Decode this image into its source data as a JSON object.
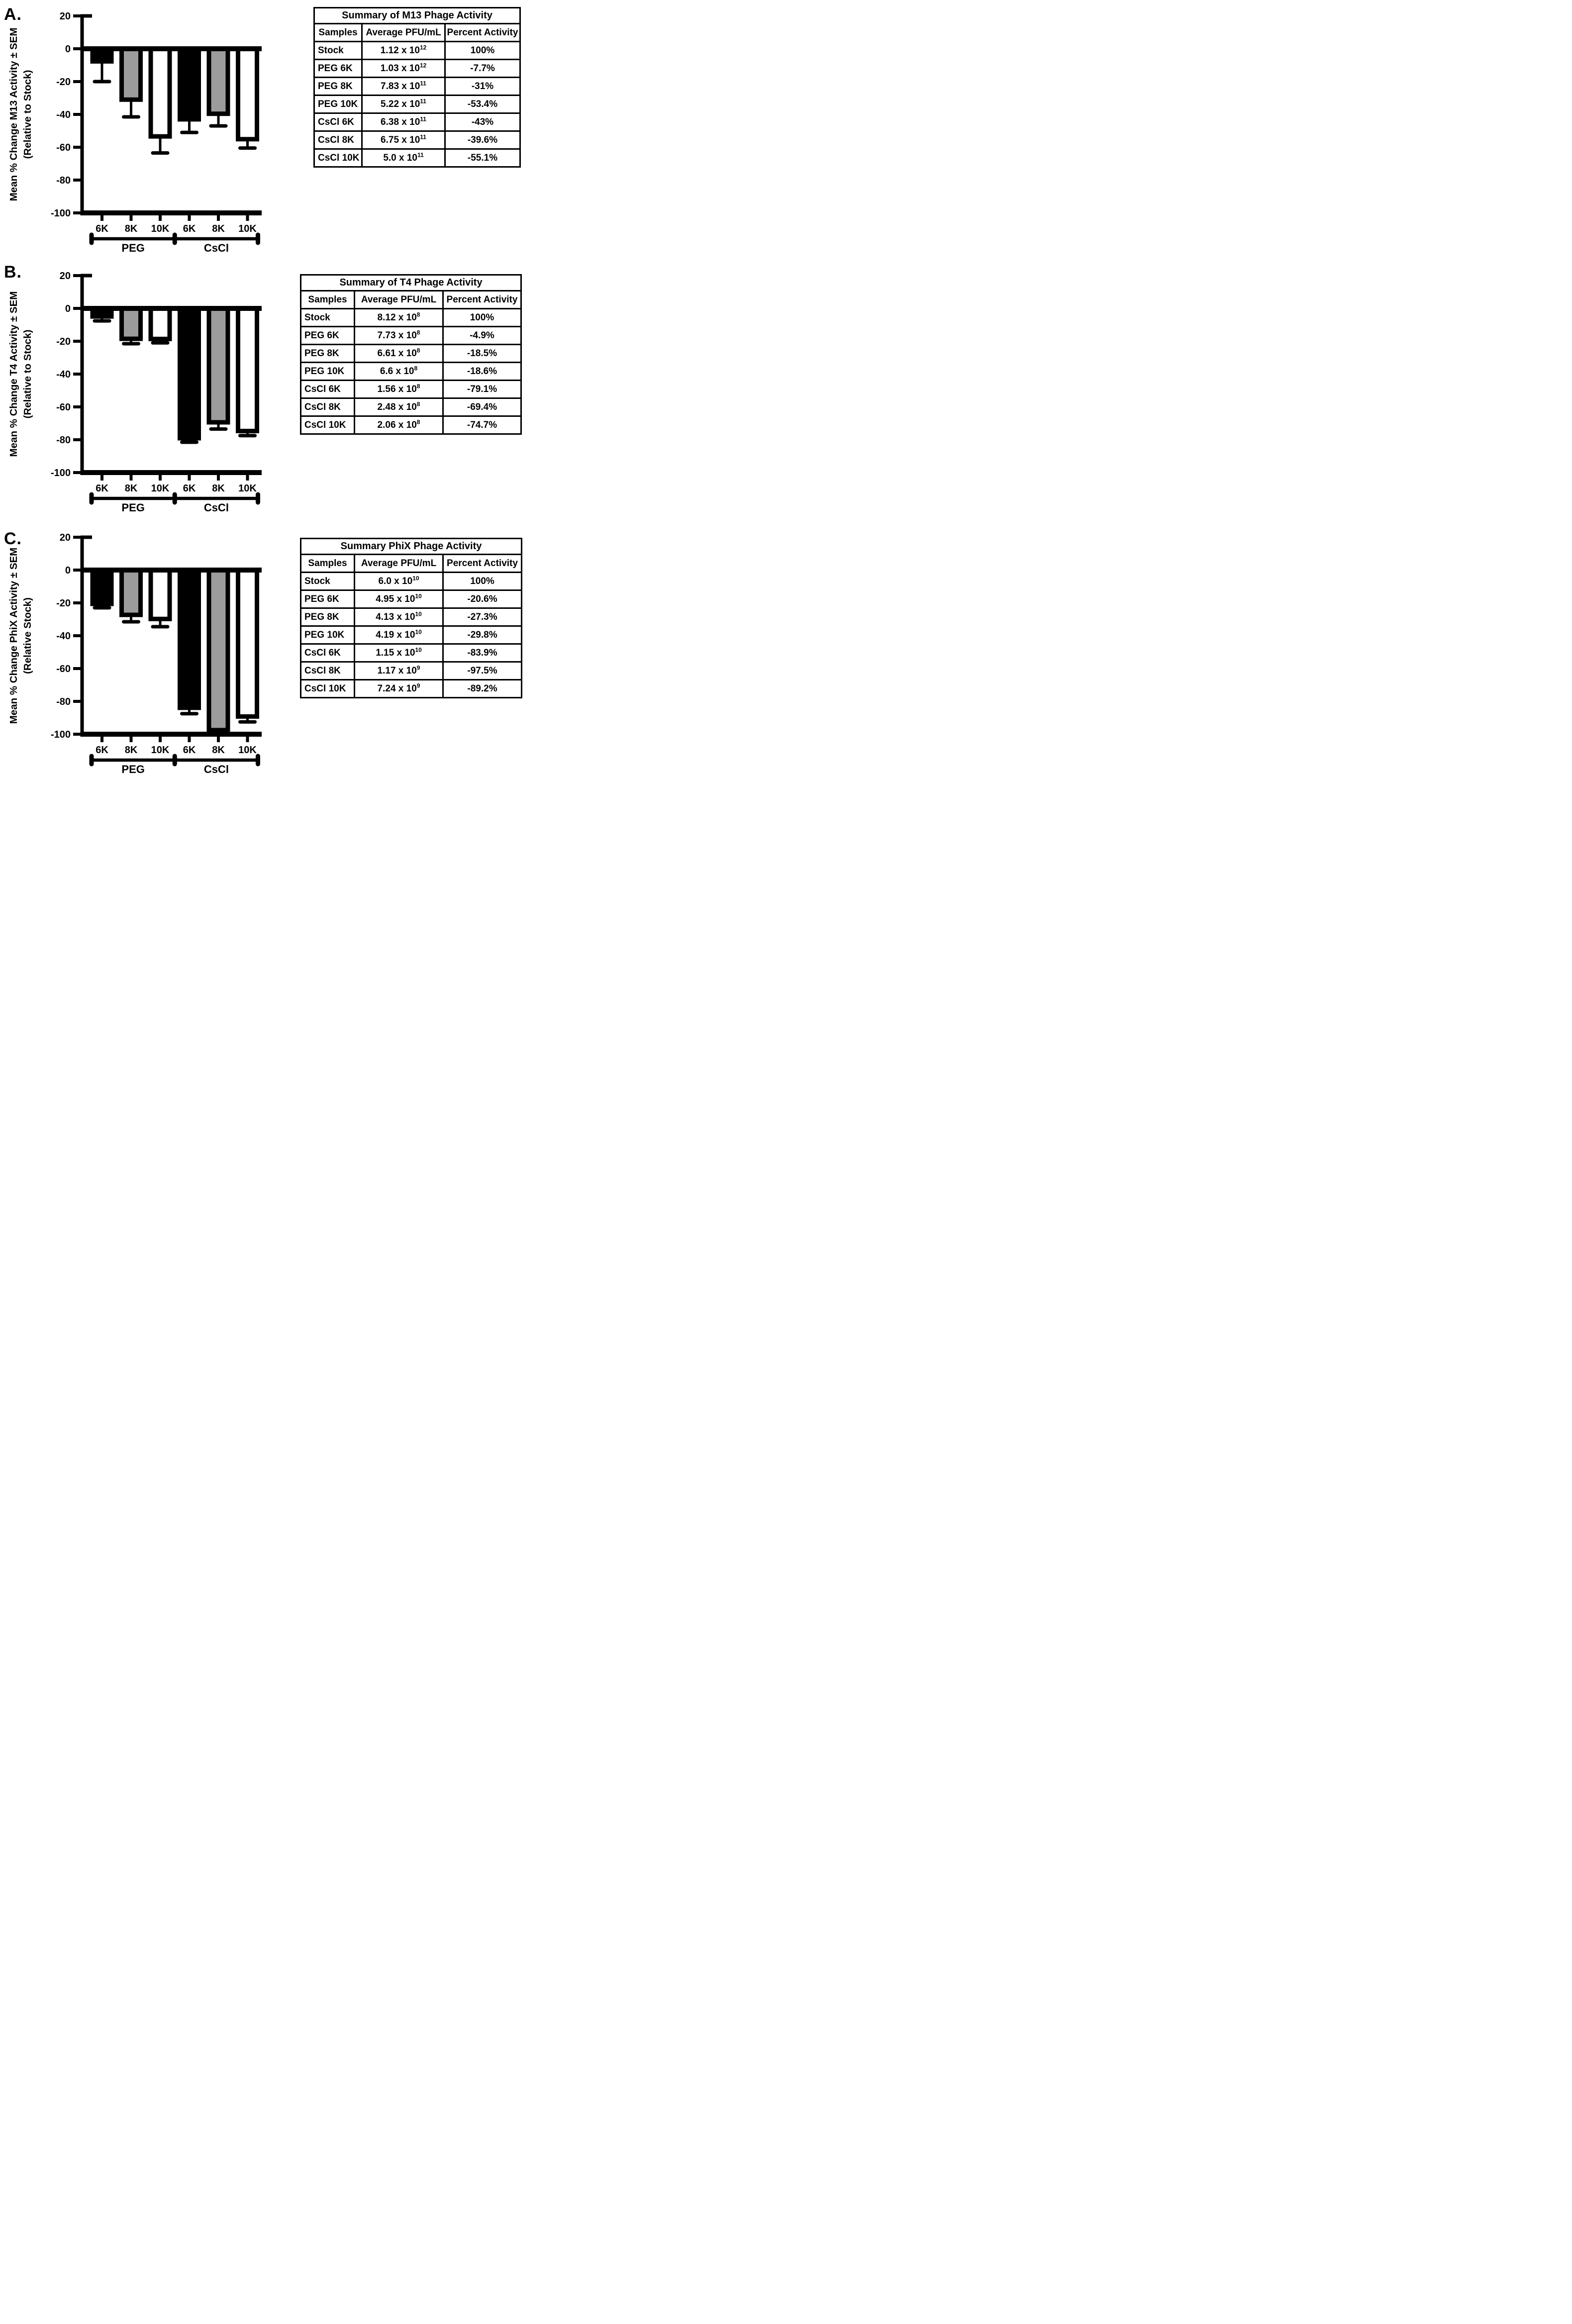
{
  "panel_labels": [
    "A.",
    "B.",
    "C."
  ],
  "colors": {
    "black": "#000000",
    "gray": "#9c9c9c",
    "white": "#ffffff",
    "axis": "#000000",
    "background": "#ffffff"
  },
  "chart_data": [
    {
      "type": "bar",
      "panel": "A.",
      "ylabel": "Mean % Change M13 Activity ± SEM",
      "ylabel2": "(Relative to Stock)",
      "ylim": [
        20,
        -100
      ],
      "yticks": [
        20,
        0,
        -20,
        -40,
        -60,
        -80,
        -100
      ],
      "categories": [
        "6K",
        "8K",
        "10K",
        "6K",
        "8K",
        "10K"
      ],
      "group_labels": [
        "PEG",
        "CsCl"
      ],
      "values": [
        -7.7,
        -31,
        -53.4,
        -43,
        -39.6,
        -55.1
      ],
      "sem_estimated": [
        12.3,
        10.5,
        10.1,
        8.0,
        7.4,
        5.4
      ],
      "bar_colors": [
        "black",
        "gray",
        "white",
        "black",
        "gray",
        "white"
      ],
      "grid": false,
      "legend": "none"
    },
    {
      "type": "bar",
      "panel": "B.",
      "ylabel": "Mean % Change T4 Activity ± SEM",
      "ylabel2": "(Relative to Stock)",
      "ylim": [
        20,
        -100
      ],
      "yticks": [
        20,
        0,
        -20,
        -40,
        -60,
        -80,
        -100
      ],
      "categories": [
        "6K",
        "8K",
        "10K",
        "6K",
        "8K",
        "10K"
      ],
      "group_labels": [
        "PEG",
        "CsCl"
      ],
      "values": [
        -4.9,
        -18.5,
        -18.6,
        -79.1,
        -69.4,
        -74.7
      ],
      "sem_estimated": [
        2.7,
        3.0,
        2.4,
        2.4,
        4.1,
        2.8
      ],
      "bar_colors": [
        "black",
        "gray",
        "white",
        "black",
        "gray",
        "white"
      ],
      "grid": false,
      "legend": "none"
    },
    {
      "type": "bar",
      "panel": "C.",
      "ylabel": "Mean % Change PhiX Activity ± SEM",
      "ylabel2": "(Relative Stock)",
      "ylim": [
        20,
        -100
      ],
      "yticks": [
        20,
        0,
        -20,
        -40,
        -60,
        -80,
        -100
      ],
      "categories": [
        "6K",
        "8K",
        "10K",
        "6K",
        "8K",
        "10K"
      ],
      "group_labels": [
        "PEG",
        "CsCl"
      ],
      "values": [
        -20.6,
        -27.3,
        -29.8,
        -83.9,
        -97.5,
        -89.2
      ],
      "sem_estimated": [
        2.4,
        4.2,
        4.7,
        3.6,
        0,
        3.3
      ],
      "bar_colors": [
        "black",
        "gray",
        "white",
        "black",
        "gray",
        "white"
      ],
      "grid": false,
      "legend": "none"
    }
  ],
  "tables": [
    {
      "title": "Summary of M13 Phage Activity",
      "headers": [
        "Samples",
        "Average PFU/mL",
        "Percent Activity"
      ],
      "rows": [
        [
          "Stock",
          "1.12 x 10^12",
          "100%"
        ],
        [
          "PEG 6K",
          "1.03 x 10^12",
          "-7.7%"
        ],
        [
          "PEG 8K",
          "7.83 x 10^11",
          "-31%"
        ],
        [
          "PEG 10K",
          "5.22 x 10^11",
          "-53.4%"
        ],
        [
          "CsCl 6K",
          "6.38 x 10^11",
          "-43%"
        ],
        [
          "CsCl 8K",
          "6.75 x 10^11",
          "-39.6%"
        ],
        [
          "CsCl 10K",
          "5.0 x 10^11",
          "-55.1%"
        ]
      ]
    },
    {
      "title": "Summary of T4 Phage Activity",
      "headers": [
        "Samples",
        "Average PFU/mL",
        "Percent Activity"
      ],
      "rows": [
        [
          "Stock",
          "8.12 x 10^8",
          "100%"
        ],
        [
          "PEG 6K",
          "7.73 x 10^8",
          "-4.9%"
        ],
        [
          "PEG 8K",
          "6.61 x 10^8",
          "-18.5%"
        ],
        [
          "PEG 10K",
          "6.6 x 10^8",
          "-18.6%"
        ],
        [
          "CsCl 6K",
          "1.56 x 10^8",
          "-79.1%"
        ],
        [
          "CsCl 8K",
          "2.48 x 10^8",
          "-69.4%"
        ],
        [
          "CsCl 10K",
          "2.06 x 10^8",
          "-74.7%"
        ]
      ]
    },
    {
      "title": "Summary PhiX Phage Activity",
      "headers": [
        "Samples",
        "Average PFU/mL",
        "Percent Activity"
      ],
      "rows": [
        [
          "Stock",
          "6.0 x 10^10",
          "100%"
        ],
        [
          "PEG 6K",
          "4.95 x 10^10",
          "-20.6%"
        ],
        [
          "PEG 8K",
          "4.13 x 10^10",
          "-27.3%"
        ],
        [
          "PEG 10K",
          "4.19 x 10^10",
          "-29.8%"
        ],
        [
          "CsCl 6K",
          "1.15 x 10^10",
          "-83.9%"
        ],
        [
          "CsCl 8K",
          "1.17 x 10^9",
          "-97.5%"
        ],
        [
          "CsCl 10K",
          "7.24 x 10^9",
          "-89.2%"
        ]
      ]
    }
  ]
}
